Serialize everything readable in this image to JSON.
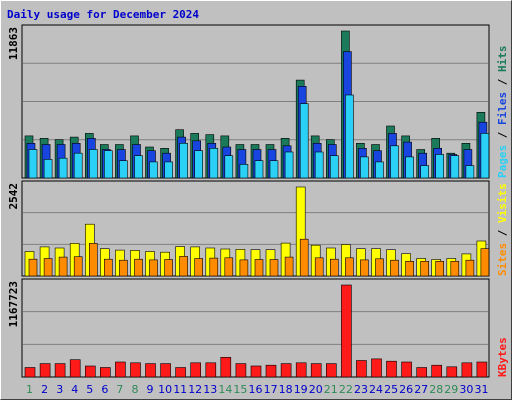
{
  "chart_data": {
    "type": "bar",
    "title": "Daily usage for December 2024",
    "colors": {
      "hits": "#1a7a5a",
      "files": "#1844e0",
      "pages": "#2ad0f5",
      "visits": "#ffff00",
      "sites": "#ff8c00",
      "kbytes": "#ff1a1a",
      "weekend_label": "#2e8b57",
      "weekday_label": "#0000cc",
      "panel_bg": "#c0c0c0",
      "grid": "#808080",
      "title": "#0000cc"
    },
    "categories": [
      "1",
      "2",
      "3",
      "4",
      "5",
      "6",
      "7",
      "8",
      "9",
      "10",
      "11",
      "12",
      "13",
      "14",
      "15",
      "16",
      "17",
      "18",
      "19",
      "20",
      "21",
      "22",
      "23",
      "24",
      "25",
      "26",
      "27",
      "28",
      "29",
      "30",
      "31"
    ],
    "weekend_days": [
      "1",
      "7",
      "8",
      "14",
      "15",
      "21",
      "22",
      "28",
      "29"
    ],
    "panels": [
      {
        "id": "hits_files_pages",
        "ymax_label": "11863",
        "ymax": 11863,
        "side_label": {
          "pages": "Pages",
          "files": "Files",
          "hits": "Hits",
          "sep": " / "
        },
        "series": [
          {
            "name": "Hits",
            "values": [
              3400,
              3200,
              3100,
              3300,
              3600,
              2700,
              2700,
              3400,
              2500,
              2400,
              3900,
              3600,
              3500,
              3400,
              2700,
              2700,
              2700,
              3200,
              7900,
              3400,
              3100,
              11863,
              2800,
              2700,
              4200,
              3400,
              2300,
              3200,
              2000,
              2800,
              5300
            ]
          },
          {
            "name": "Files",
            "values": [
              2800,
              2700,
              2700,
              2800,
              3200,
              2300,
              2300,
              2700,
              2200,
              2000,
              3300,
              3000,
              2800,
              2500,
              2300,
              2300,
              2300,
              2600,
              7400,
              2800,
              2700,
              10200,
              2400,
              2200,
              3600,
              2900,
              2000,
              2400,
              1900,
              2300,
              4500
            ]
          },
          {
            "name": "Pages",
            "values": [
              2300,
              1500,
              1600,
              2000,
              2300,
              2200,
              1400,
              1800,
              1300,
              1300,
              2800,
              2200,
              2400,
              1800,
              1100,
              1400,
              1400,
              2100,
              6000,
              2100,
              1800,
              6700,
              1700,
              1300,
              2600,
              1700,
              1000,
              1900,
              1800,
              1000,
              3600
            ]
          }
        ]
      },
      {
        "id": "visits_sites",
        "ymax_label": "2542",
        "ymax": 2542,
        "side_label": {
          "sites": "Sites",
          "visits": "Visits",
          "sep": " / "
        },
        "series": [
          {
            "name": "Visits",
            "values": [
              700,
              830,
              800,
              930,
              1480,
              780,
              740,
              730,
              700,
              680,
              840,
              830,
              800,
              770,
              760,
              750,
              750,
              940,
              2542,
              880,
              800,
              900,
              780,
              780,
              750,
              640,
              500,
              470,
              500,
              630,
              1000
            ]
          },
          {
            "name": "Sites",
            "values": [
              480,
              500,
              540,
              550,
              930,
              480,
              450,
              480,
              460,
              470,
              560,
              500,
              510,
              520,
              460,
              470,
              470,
              540,
              1050,
              520,
              480,
              520,
              460,
              490,
              450,
              420,
              420,
              420,
              420,
              450,
              780
            ]
          }
        ]
      },
      {
        "id": "kbytes",
        "ymax_label": "1167723",
        "ymax": 1167723,
        "side_label": {
          "kbytes": "KBytes"
        },
        "series": [
          {
            "name": "KBytes",
            "values": [
              120000,
              170000,
              170000,
              220000,
              140000,
              120000,
              190000,
              180000,
              170000,
              170000,
              120000,
              180000,
              180000,
              250000,
              170000,
              140000,
              150000,
              170000,
              180000,
              170000,
              170000,
              1167723,
              210000,
              230000,
              200000,
              190000,
              120000,
              150000,
              130000,
              180000,
              190000
            ]
          }
        ]
      }
    ]
  }
}
